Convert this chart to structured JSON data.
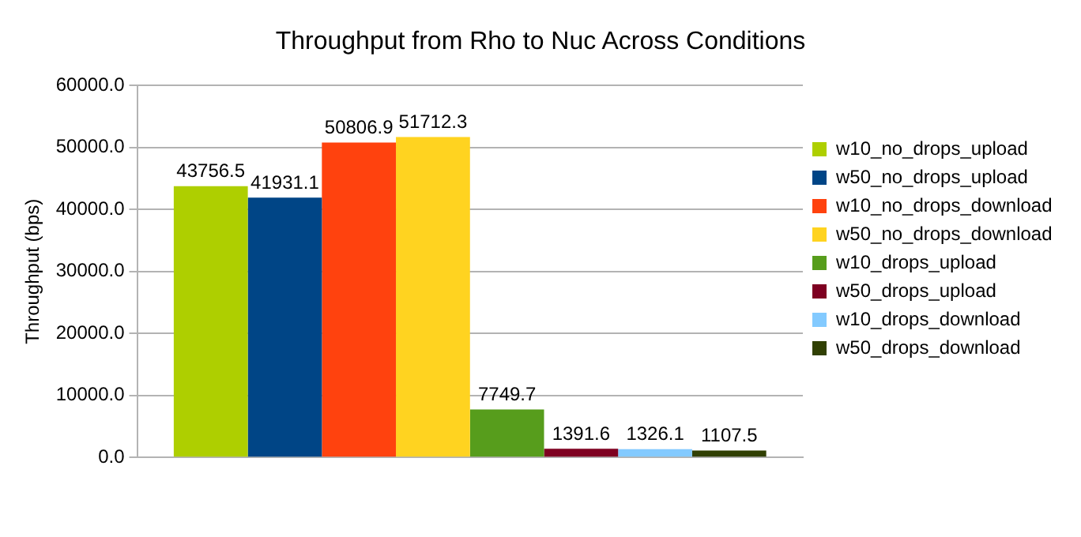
{
  "chart_data": {
    "type": "bar",
    "title": "Throughput from Rho to Nuc Across Conditions",
    "ylabel": "Throughput (bps)",
    "categories": [
      null
    ],
    "series": [
      {
        "name": "w10_no_drops_upload",
        "color": "#aecf00",
        "values": [
          43756.5
        ]
      },
      {
        "name": "w50_no_drops_upload",
        "color": "#004586",
        "values": [
          41931.1
        ]
      },
      {
        "name": "w10_no_drops_download",
        "color": "#ff420e",
        "values": [
          50806.9
        ]
      },
      {
        "name": "w50_no_drops_download",
        "color": "#ffd320",
        "values": [
          51712.3
        ]
      },
      {
        "name": "w10_drops_upload",
        "color": "#579d1c",
        "values": [
          7749.7
        ]
      },
      {
        "name": "w50_drops_upload",
        "color": "#7e0021",
        "values": [
          1391.6
        ]
      },
      {
        "name": "w10_drops_download",
        "color": "#83caff",
        "values": [
          1326.1
        ]
      },
      {
        "name": "w50_drops_download",
        "color": "#314004",
        "values": [
          1107.5
        ]
      }
    ],
    "ylim": [
      0,
      60000
    ],
    "yticks": [
      {
        "value": 0,
        "label": "0.0"
      },
      {
        "value": 10000,
        "label": "10000.0"
      },
      {
        "value": 20000,
        "label": "20000.0"
      },
      {
        "value": 30000,
        "label": "30000.0"
      },
      {
        "value": 40000,
        "label": "40000.0"
      },
      {
        "value": 50000,
        "label": "50000.0"
      },
      {
        "value": 60000,
        "label": "60000.0"
      }
    ],
    "grid": "y",
    "legend": "right",
    "data_labels": true
  }
}
